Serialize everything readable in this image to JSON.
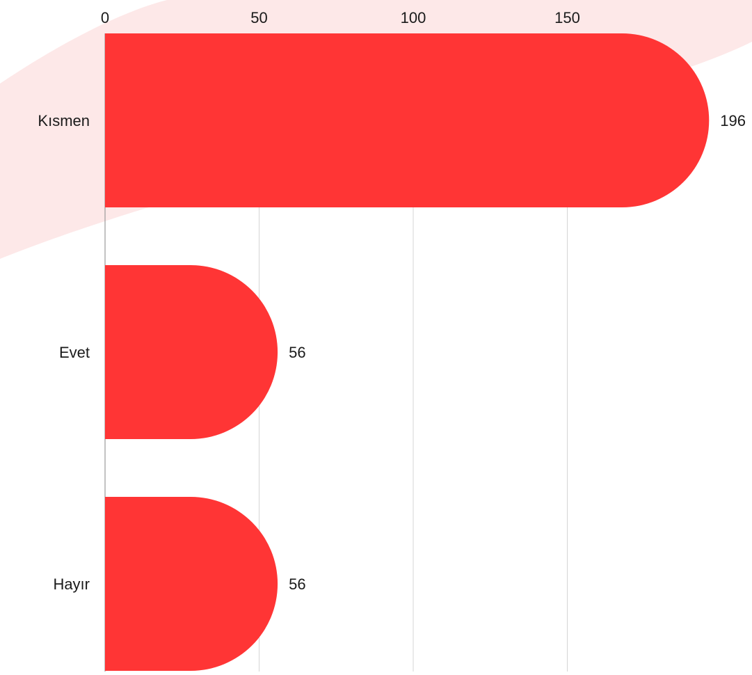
{
  "chart_data": {
    "type": "bar",
    "orientation": "horizontal",
    "categories": [
      "Kısmen",
      "Evet",
      "Hayır"
    ],
    "values": [
      196,
      56,
      56
    ],
    "x_ticks": [
      "0",
      "50",
      "100",
      "150"
    ],
    "xlim": [
      0,
      200
    ],
    "grid": true,
    "bar_color": "#ff3535",
    "background_accent": "#fde8e8"
  }
}
